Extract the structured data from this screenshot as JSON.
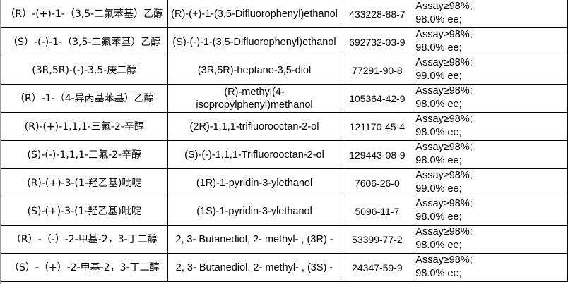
{
  "rows": [
    {
      "cn": "（R）-(+)-1-（3,5-二氟苯基）乙醇",
      "en": "(R)-(+)-1-(3,5-Difluorophenyl)ethanol",
      "cas": "433228-88-7",
      "assay": "Assay≥98%;",
      "ee": "98.0% ee;"
    },
    {
      "cn": "（S）-(-)-1-（3,5-二氟苯基）乙醇",
      "en": "(S)-(-)-1-(3,5-Difluorophenyl)ethanol",
      "cas": "692732-03-9",
      "assay": "Assay≥98%;",
      "ee": "98.0% ee;"
    },
    {
      "cn": "(3R,5R)-(-)-3,5-庚二醇",
      "en": "(3R,5R)-heptane-3,5-diol",
      "cas": "77291-90-8",
      "assay": "Assay≥98%;",
      "ee": "99.0% ee;"
    },
    {
      "cn": "（R）-1-（4-异丙基苯基）乙醇",
      "en": "(R)-methyl(4-isopropylphenyl)methanol",
      "cas": "105364-42-9",
      "assay": "Assay≥98%;",
      "ee": "98.0% ee;"
    },
    {
      "cn": "(R)-(+)-1,1,1-三氟-2-辛醇",
      "en": "(2R)-1,1,1-trifluorooctan-2-ol",
      "cas": "121170-45-4",
      "assay": "Assay≥98%;",
      "ee": "98.0% ee;"
    },
    {
      "cn": "(S)-(-)-1,1,1-三氟-2-辛醇",
      "en": "(S)-(-)-1,1,1-Trifluorooctan-2-ol",
      "cas": "129443-08-9",
      "assay": "Assay≥98%;",
      "ee": "98.0% ee;"
    },
    {
      "cn": "(R)-(+)-3-(1-羟乙基)吡啶",
      "en": "(1R)-1-pyridin-3-ylethanol",
      "cas": "7606-26-0",
      "assay": "Assay≥98%;",
      "ee": "99.0% ee;"
    },
    {
      "cn": "(S)-(+)-3-(1-羟乙基)吡啶",
      "en": "(1S)-1-pyridin-3-ylethanol",
      "cas": "5096-11-7",
      "assay": "Assay≥98%;",
      "ee": "98.0% ee;"
    },
    {
      "cn": "（R）-（-）-2-甲基-2，3-丁二醇",
      "en": "2, 3- Butanediol, 2- methyl- , (3R) -",
      "cas": "53399-77-2",
      "assay": "Assay≥98%;",
      "ee": "98.0% ee;"
    },
    {
      "cn": "（S）-（+）-2-甲基-2，3-丁二醇",
      "en": "2, 3- Butanediol, 2- methyl- , (3S) -",
      "cas": "24347-59-9",
      "assay": "Assay≥98%;",
      "ee": "98.0% ee;"
    }
  ]
}
